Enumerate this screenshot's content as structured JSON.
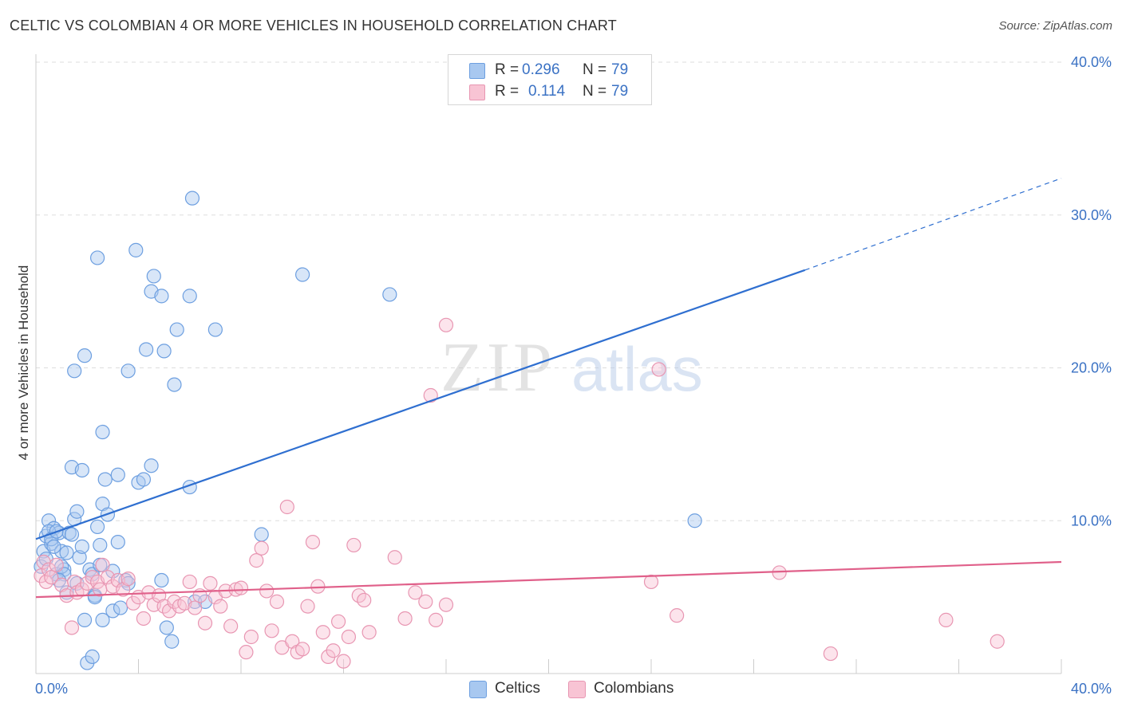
{
  "title": "CELTIC VS COLOMBIAN 4 OR MORE VEHICLES IN HOUSEHOLD CORRELATION CHART",
  "source": "Source: ZipAtlas.com",
  "watermark": {
    "zip": "ZIP",
    "atlas": "atlas"
  },
  "legend": {
    "rows": [
      {
        "r_label": "R =",
        "r_value": "0.296",
        "n_label": "N =",
        "n_value": "79",
        "color": "#a8c8f0",
        "border": "#6d9fe0"
      },
      {
        "r_label": "R =",
        "r_value": "0.114",
        "n_label": "N =",
        "n_value": "79",
        "color": "#f8c4d4",
        "border": "#e896b2"
      }
    ]
  },
  "bottom_legend": [
    {
      "label": "Celtics",
      "color": "#a8c8f0",
      "border": "#6d9fe0"
    },
    {
      "label": "Colombians",
      "color": "#f8c4d4",
      "border": "#e896b2"
    }
  ],
  "chart_data": {
    "type": "scatter",
    "title": "CELTIC VS COLOMBIAN 4 OR MORE VEHICLES IN HOUSEHOLD CORRELATION CHART",
    "xlabel": "",
    "ylabel": "4 or more Vehicles in Household",
    "xlim": [
      0,
      40
    ],
    "ylim": [
      0,
      40
    ],
    "x_tick_labels": [
      "0.0%",
      "40.0%"
    ],
    "y_tick_values": [
      10,
      20,
      30,
      40
    ],
    "y_tick_labels": [
      "10.0%",
      "20.0%",
      "30.0%",
      "40.0%"
    ],
    "grid": true,
    "series": [
      {
        "name": "Celtics",
        "color": "#6d9fe0",
        "fill": "#a8c8f0",
        "trend": {
          "x0": 0,
          "y0": 8.8,
          "x1": 30,
          "y1": 26.4,
          "dash_to_x": 40,
          "dash_to_y": 32.4,
          "color": "#2f6fd0"
        },
        "points": [
          [
            0.2,
            7.0
          ],
          [
            0.3,
            8.0
          ],
          [
            0.4,
            9.0
          ],
          [
            0.5,
            10.0
          ],
          [
            0.6,
            8.5
          ],
          [
            0.7,
            9.5
          ],
          [
            0.8,
            6.5
          ],
          [
            0.9,
            9.2
          ],
          [
            1.0,
            8.0
          ],
          [
            1.1,
            6.8
          ],
          [
            0.5,
            9.3
          ],
          [
            0.6,
            8.8
          ],
          [
            0.7,
            8.3
          ],
          [
            0.8,
            9.3
          ],
          [
            1.0,
            7.0
          ],
          [
            1.2,
            5.3
          ],
          [
            1.3,
            9.2
          ],
          [
            1.4,
            13.5
          ],
          [
            1.5,
            10.1
          ],
          [
            1.6,
            10.6
          ],
          [
            1.7,
            7.6
          ],
          [
            1.8,
            8.3
          ],
          [
            1.9,
            3.5
          ],
          [
            2.0,
            0.7
          ],
          [
            2.1,
            6.8
          ],
          [
            2.2,
            6.5
          ],
          [
            2.3,
            5.1
          ],
          [
            2.4,
            9.6
          ],
          [
            2.5,
            7.1
          ],
          [
            2.6,
            11.1
          ],
          [
            2.6,
            3.5
          ],
          [
            2.7,
            12.7
          ],
          [
            2.8,
            10.4
          ],
          [
            3.0,
            4.1
          ],
          [
            3.2,
            8.6
          ],
          [
            3.3,
            4.3
          ],
          [
            3.5,
            6.1
          ],
          [
            3.6,
            5.9
          ],
          [
            4.0,
            12.5
          ],
          [
            4.2,
            12.7
          ],
          [
            4.5,
            13.6
          ],
          [
            4.9,
            6.1
          ],
          [
            5.1,
            3.0
          ],
          [
            5.3,
            2.1
          ],
          [
            6.0,
            12.2
          ],
          [
            6.2,
            4.7
          ],
          [
            6.6,
            4.7
          ],
          [
            8.8,
            9.1
          ],
          [
            6.0,
            24.7
          ],
          [
            5.0,
            21.1
          ],
          [
            3.9,
            27.7
          ],
          [
            4.6,
            26.0
          ],
          [
            4.3,
            21.2
          ],
          [
            4.5,
            25.0
          ],
          [
            3.6,
            19.8
          ],
          [
            4.9,
            24.7
          ],
          [
            5.5,
            22.5
          ],
          [
            7.0,
            22.5
          ],
          [
            5.4,
            18.9
          ],
          [
            6.1,
            31.1
          ],
          [
            10.4,
            26.1
          ],
          [
            13.8,
            24.8
          ],
          [
            2.4,
            27.2
          ],
          [
            1.9,
            20.8
          ],
          [
            1.5,
            19.8
          ],
          [
            2.6,
            15.8
          ],
          [
            1.8,
            13.3
          ],
          [
            3.2,
            13.0
          ],
          [
            25.7,
            10.0
          ],
          [
            1.2,
            7.9
          ],
          [
            1.1,
            6.5
          ],
          [
            2.5,
            8.4
          ],
          [
            1.4,
            9.1
          ],
          [
            0.4,
            7.5
          ],
          [
            0.9,
            6.1
          ],
          [
            3.0,
            6.7
          ],
          [
            2.2,
            1.1
          ],
          [
            2.3,
            5.0
          ],
          [
            1.6,
            5.9
          ]
        ]
      },
      {
        "name": "Colombians",
        "color": "#e896b2",
        "fill": "#f8c4d4",
        "trend": {
          "x0": 0,
          "y0": 5.0,
          "x1": 40,
          "y1": 7.3,
          "color": "#e0608a"
        },
        "points": [
          [
            0.2,
            6.4
          ],
          [
            0.3,
            7.3
          ],
          [
            0.4,
            6.0
          ],
          [
            0.5,
            6.8
          ],
          [
            0.6,
            6.3
          ],
          [
            0.8,
            7.1
          ],
          [
            1.0,
            5.8
          ],
          [
            1.2,
            5.1
          ],
          [
            1.4,
            3.0
          ],
          [
            1.5,
            6.0
          ],
          [
            1.6,
            5.3
          ],
          [
            1.8,
            5.5
          ],
          [
            2.0,
            5.9
          ],
          [
            2.2,
            6.3
          ],
          [
            2.4,
            6.0
          ],
          [
            2.5,
            5.5
          ],
          [
            2.6,
            7.1
          ],
          [
            2.8,
            6.3
          ],
          [
            3.0,
            5.7
          ],
          [
            3.2,
            6.1
          ],
          [
            3.4,
            5.5
          ],
          [
            3.6,
            6.2
          ],
          [
            3.8,
            4.6
          ],
          [
            4.0,
            5.0
          ],
          [
            4.2,
            3.6
          ],
          [
            4.4,
            5.3
          ],
          [
            4.6,
            4.5
          ],
          [
            4.8,
            5.1
          ],
          [
            5.0,
            4.4
          ],
          [
            5.2,
            4.1
          ],
          [
            5.4,
            4.7
          ],
          [
            5.6,
            4.4
          ],
          [
            5.8,
            4.6
          ],
          [
            6.0,
            6.0
          ],
          [
            6.2,
            4.3
          ],
          [
            6.4,
            5.1
          ],
          [
            6.6,
            3.3
          ],
          [
            6.8,
            5.9
          ],
          [
            7.0,
            5.0
          ],
          [
            7.2,
            4.4
          ],
          [
            7.4,
            5.4
          ],
          [
            7.6,
            3.1
          ],
          [
            7.8,
            5.5
          ],
          [
            8.0,
            5.6
          ],
          [
            8.2,
            1.4
          ],
          [
            8.4,
            2.4
          ],
          [
            8.6,
            7.4
          ],
          [
            8.8,
            8.2
          ],
          [
            9.0,
            5.4
          ],
          [
            9.2,
            2.8
          ],
          [
            9.4,
            4.7
          ],
          [
            9.6,
            1.7
          ],
          [
            9.8,
            10.9
          ],
          [
            10.0,
            2.1
          ],
          [
            10.2,
            1.4
          ],
          [
            10.4,
            1.6
          ],
          [
            10.6,
            4.4
          ],
          [
            10.8,
            8.6
          ],
          [
            11.0,
            5.7
          ],
          [
            11.2,
            2.7
          ],
          [
            11.4,
            1.1
          ],
          [
            11.6,
            1.5
          ],
          [
            11.8,
            3.4
          ],
          [
            12.0,
            0.8
          ],
          [
            12.2,
            2.4
          ],
          [
            12.4,
            8.4
          ],
          [
            12.6,
            5.1
          ],
          [
            12.8,
            4.8
          ],
          [
            13.0,
            2.7
          ],
          [
            14.0,
            7.6
          ],
          [
            14.4,
            3.6
          ],
          [
            14.8,
            5.3
          ],
          [
            15.2,
            4.7
          ],
          [
            15.6,
            3.5
          ],
          [
            16.0,
            4.5
          ],
          [
            24.0,
            6.0
          ],
          [
            29.0,
            6.6
          ],
          [
            31.0,
            1.3
          ],
          [
            37.5,
            2.1
          ]
        ]
      }
    ],
    "extra_colombian_points": [
      [
        16.0,
        22.8
      ],
      [
        15.4,
        18.2
      ],
      [
        24.3,
        19.9
      ],
      [
        25.0,
        3.8
      ],
      [
        35.5,
        3.5
      ]
    ]
  }
}
